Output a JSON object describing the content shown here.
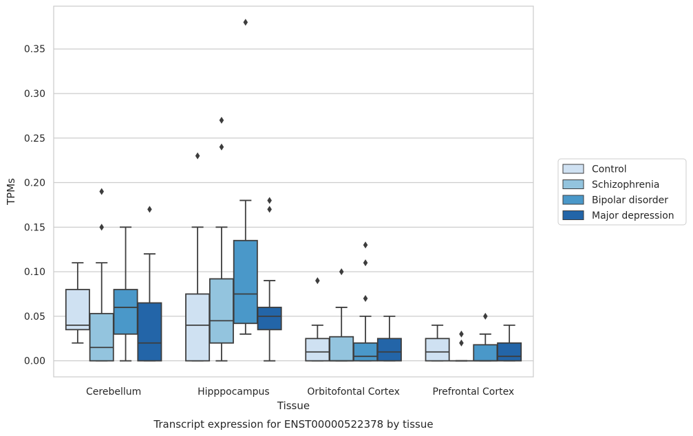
{
  "caption": "Transcript expression for ENST00000522378 by tissue",
  "colors": {
    "box_edge": "#3d3d3d",
    "grid": "#cccccc",
    "frame": "#cccccc",
    "text": "#262626"
  },
  "chart_data": {
    "type": "box",
    "xlabel": "Tissue",
    "ylabel": "TPMs",
    "ylim": [
      -0.018,
      0.398
    ],
    "yticks": [
      "0.00",
      "0.05",
      "0.10",
      "0.15",
      "0.20",
      "0.25",
      "0.30",
      "0.35"
    ],
    "grid": "horizontal",
    "legend_position": "outside-right",
    "categories": [
      "Cerebellum",
      "Hipppocampus",
      "Orbitofontal Cortex",
      "Prefrontal Cortex"
    ],
    "series": [
      {
        "name": "Control",
        "color": "#cfe1f2",
        "boxes": [
          {
            "whislo": 0.02,
            "q1": 0.035,
            "med": 0.04,
            "q3": 0.08,
            "whishi": 0.11,
            "fliers": []
          },
          {
            "whislo": 0.0,
            "q1": 0.0,
            "med": 0.04,
            "q3": 0.075,
            "whishi": 0.15,
            "fliers": [
              0.23
            ]
          },
          {
            "whislo": 0.0,
            "q1": 0.0,
            "med": 0.01,
            "q3": 0.025,
            "whishi": 0.04,
            "fliers": [
              0.09
            ]
          },
          {
            "whislo": 0.0,
            "q1": 0.0,
            "med": 0.01,
            "q3": 0.025,
            "whishi": 0.04,
            "fliers": []
          }
        ]
      },
      {
        "name": "Schizophrenia",
        "color": "#93c4de",
        "boxes": [
          {
            "whislo": 0.0,
            "q1": 0.0,
            "med": 0.015,
            "q3": 0.053,
            "whishi": 0.11,
            "fliers": [
              0.15,
              0.19
            ]
          },
          {
            "whislo": 0.0,
            "q1": 0.02,
            "med": 0.045,
            "q3": 0.092,
            "whishi": 0.15,
            "fliers": [
              0.24,
              0.27
            ]
          },
          {
            "whislo": 0.0,
            "q1": 0.0,
            "med": 0.0,
            "q3": 0.027,
            "whishi": 0.06,
            "fliers": [
              0.1
            ]
          },
          {
            "whislo": 0.0,
            "q1": 0.0,
            "med": 0.0,
            "q3": 0.0,
            "whishi": 0.0,
            "fliers": [
              0.02,
              0.03
            ]
          }
        ]
      },
      {
        "name": "Bipolar disorder",
        "color": "#4a98c9",
        "boxes": [
          {
            "whislo": 0.0,
            "q1": 0.03,
            "med": 0.06,
            "q3": 0.08,
            "whishi": 0.15,
            "fliers": []
          },
          {
            "whislo": 0.03,
            "q1": 0.042,
            "med": 0.075,
            "q3": 0.135,
            "whishi": 0.18,
            "fliers": [
              0.38
            ]
          },
          {
            "whislo": 0.0,
            "q1": 0.0,
            "med": 0.005,
            "q3": 0.02,
            "whishi": 0.05,
            "fliers": [
              0.07,
              0.11,
              0.13
            ]
          },
          {
            "whislo": 0.0,
            "q1": 0.0,
            "med": 0.0,
            "q3": 0.018,
            "whishi": 0.03,
            "fliers": [
              0.05
            ]
          }
        ]
      },
      {
        "name": "Major depression",
        "color": "#2365a8",
        "boxes": [
          {
            "whislo": 0.0,
            "q1": 0.0,
            "med": 0.02,
            "q3": 0.065,
            "whishi": 0.12,
            "fliers": [
              0.17
            ]
          },
          {
            "whislo": 0.0,
            "q1": 0.035,
            "med": 0.05,
            "q3": 0.06,
            "whishi": 0.09,
            "fliers": [
              0.17,
              0.18
            ]
          },
          {
            "whislo": 0.0,
            "q1": 0.0,
            "med": 0.01,
            "q3": 0.025,
            "whishi": 0.05,
            "fliers": []
          },
          {
            "whislo": 0.0,
            "q1": 0.0,
            "med": 0.005,
            "q3": 0.02,
            "whishi": 0.04,
            "fliers": []
          }
        ]
      }
    ]
  }
}
